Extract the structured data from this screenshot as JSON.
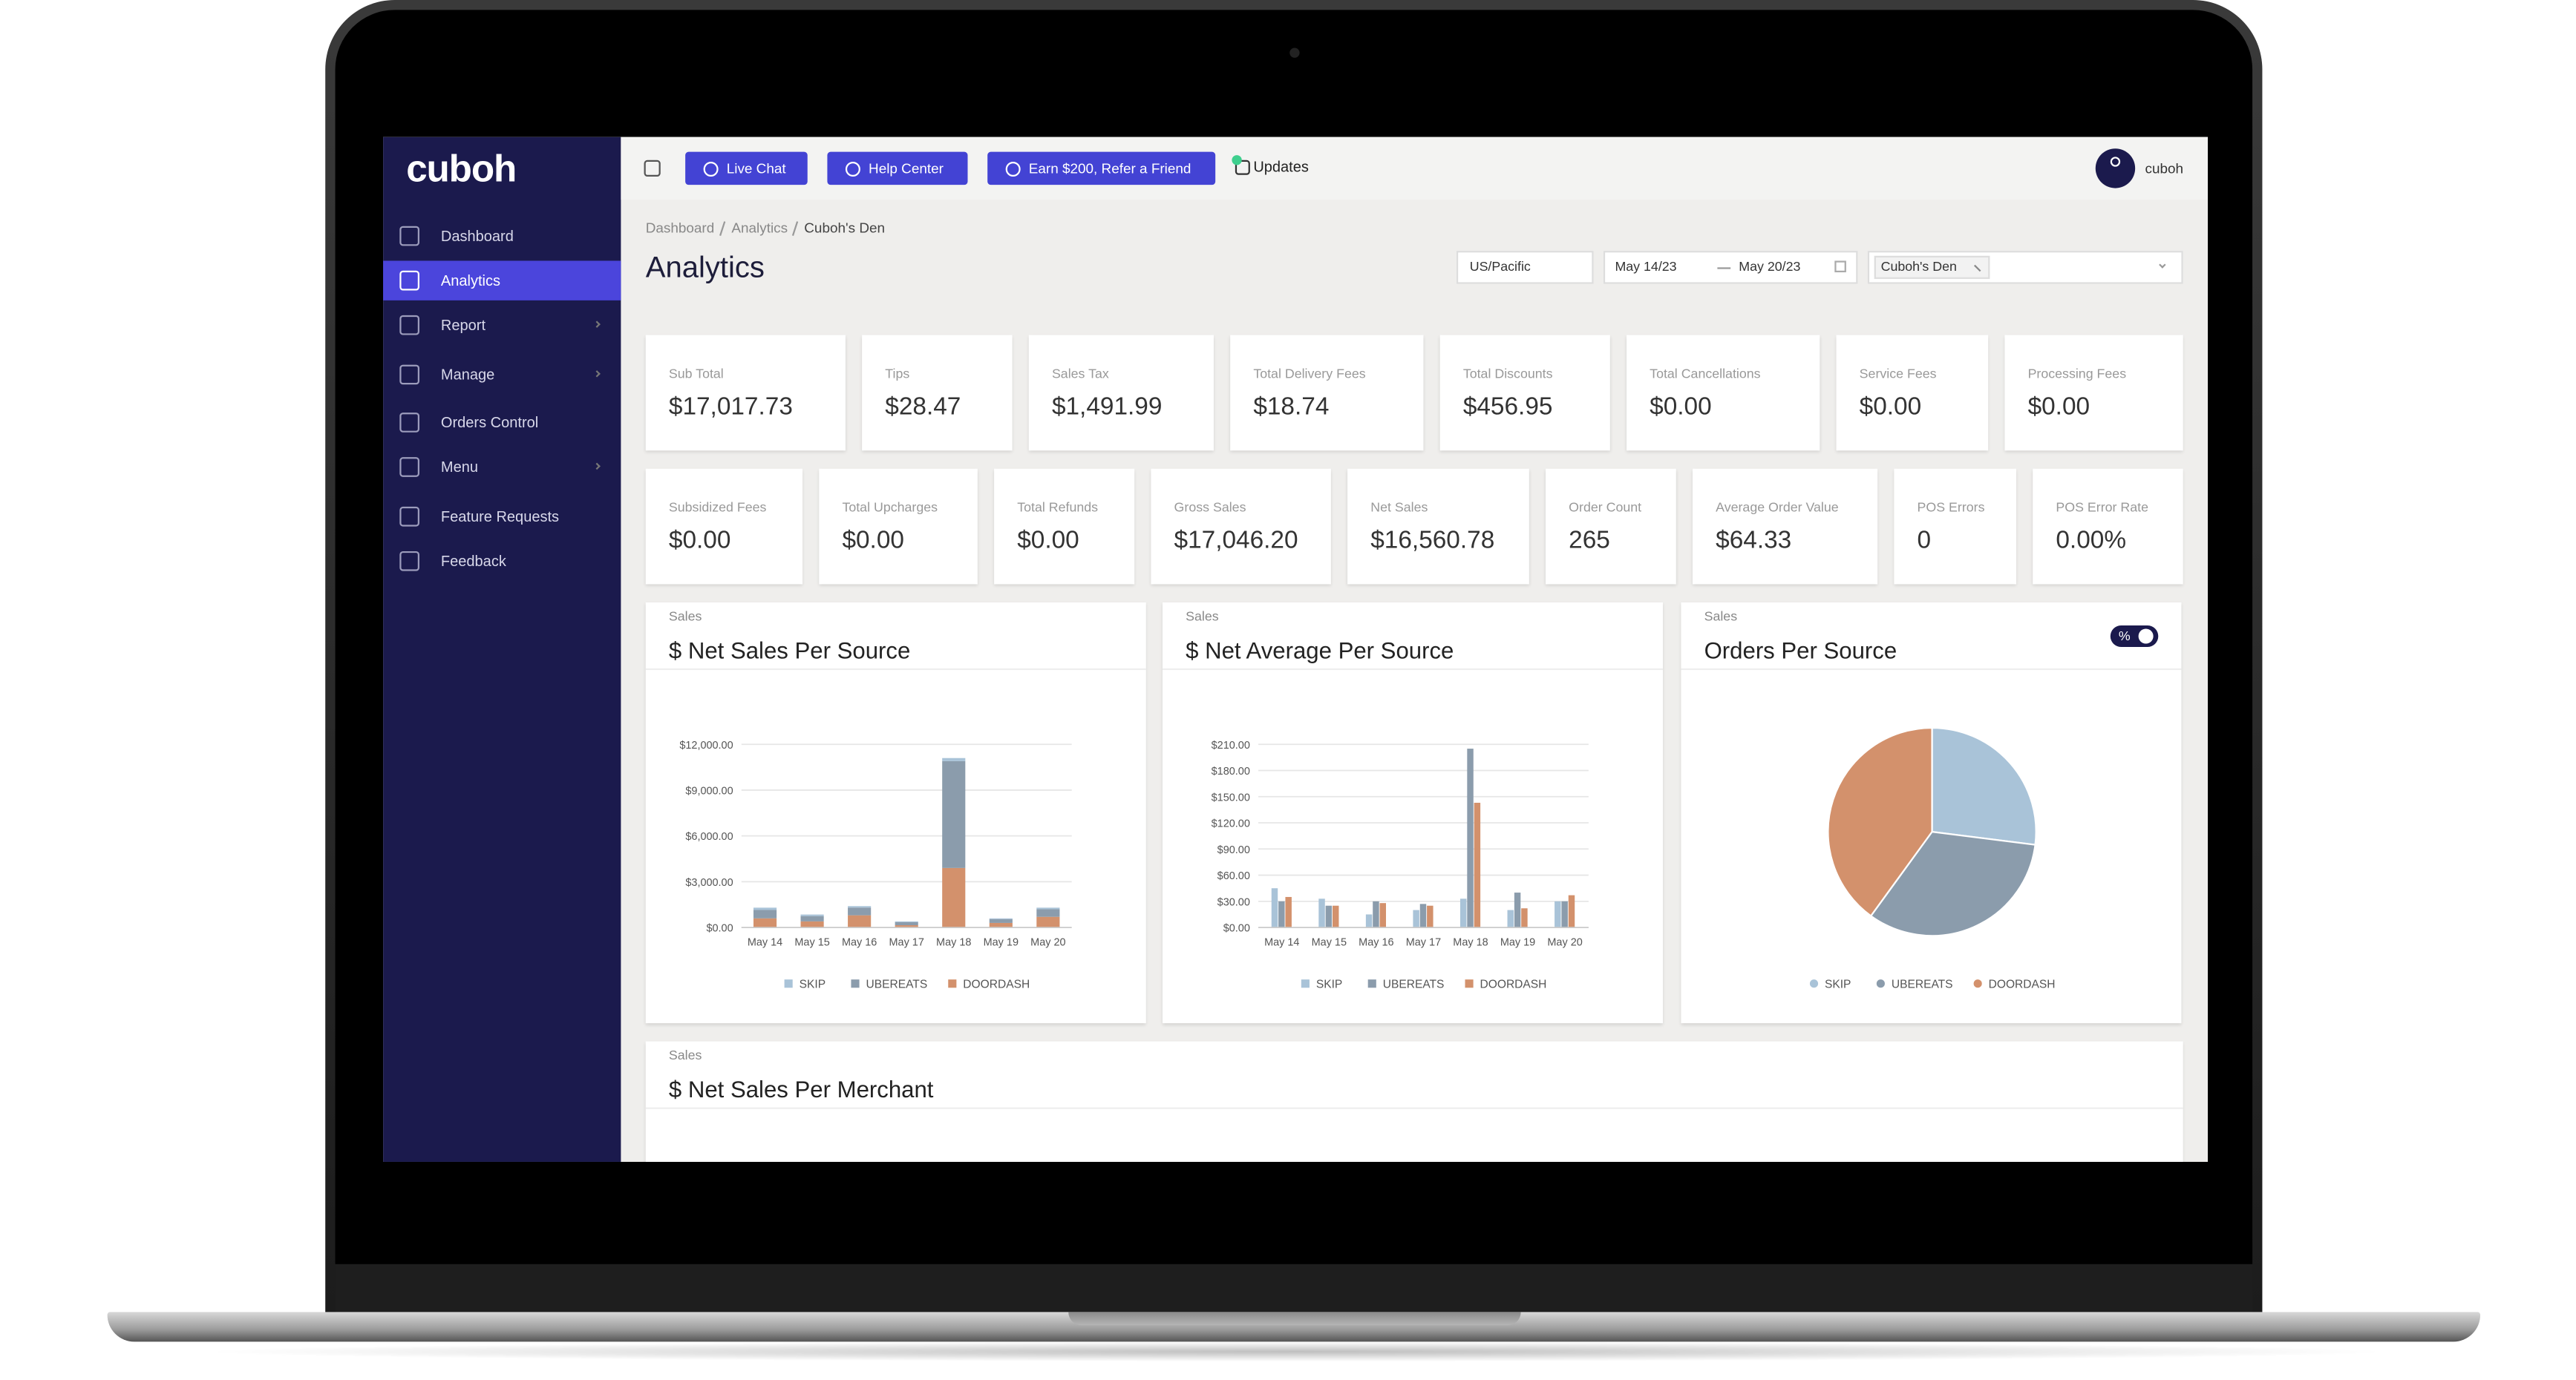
{
  "sidebar": {
    "logo": "cuboh",
    "nav": [
      "Dashboard",
      "Analytics",
      "Report",
      "Manage",
      "Orders Control",
      "Menu",
      "Feature Requests",
      "Feedback"
    ],
    "active": 1
  },
  "topbar": {
    "buttons": [
      "Live Chat",
      "Help Center",
      "Earn $200, Refer a Friend"
    ],
    "updates": "Updates",
    "user": "cuboh"
  },
  "breadcrumb": [
    "Dashboard",
    "Analytics",
    "Cuboh's Den"
  ],
  "page_title": "Analytics",
  "filters": {
    "timezone": "US/Pacific",
    "date_from": "May 14/23",
    "date_to": "May 20/23",
    "store": "Cuboh's Den"
  },
  "metrics": [
    [
      {
        "label": "Sub Total",
        "value": "$17,017.73"
      },
      {
        "label": "Tips",
        "value": "$28.47"
      },
      {
        "label": "Sales Tax",
        "value": "$1,491.99"
      },
      {
        "label": "Total Delivery Fees",
        "value": "$18.74"
      },
      {
        "label": "Total Discounts",
        "value": "$456.95"
      },
      {
        "label": "Total Cancellations",
        "value": "$0.00"
      },
      {
        "label": "Service Fees",
        "value": "$0.00"
      },
      {
        "label": "Processing Fees",
        "value": "$0.00"
      }
    ],
    [
      {
        "label": "Subsidized Fees",
        "value": "$0.00"
      },
      {
        "label": "Total Upcharges",
        "value": "$0.00"
      },
      {
        "label": "Total Refunds",
        "value": "$0.00"
      },
      {
        "label": "Gross Sales",
        "value": "$17,046.20"
      },
      {
        "label": "Net Sales",
        "value": "$16,560.78"
      },
      {
        "label": "Order Count",
        "value": "265"
      },
      {
        "label": "Average Order Value",
        "value": "$64.33"
      },
      {
        "label": "POS Errors",
        "value": "0"
      },
      {
        "label": "POS Error Rate",
        "value": "0.00%"
      }
    ]
  ],
  "chart_data": [
    {
      "type": "bar",
      "stacked": true,
      "kicker": "Sales",
      "title": "$ Net Sales Per Source",
      "categories": [
        "May 14",
        "May 15",
        "May 16",
        "May 17",
        "May 18",
        "May 19",
        "May 20"
      ],
      "series": [
        {
          "name": "SKIP",
          "color": "#a9c3d8",
          "values": [
            150,
            100,
            100,
            50,
            200,
            50,
            100
          ]
        },
        {
          "name": "UBEREATS",
          "color": "#8b9cac",
          "values": [
            550,
            350,
            500,
            200,
            7000,
            250,
            500
          ]
        },
        {
          "name": "DOORDASH",
          "color": "#d3916c",
          "values": [
            600,
            400,
            800,
            150,
            3900,
            300,
            700
          ]
        }
      ],
      "ylim": [
        0,
        12000
      ],
      "yticks": [
        {
          "value": 0,
          "label": "$0.00"
        },
        {
          "value": 3000,
          "label": "$3,000.00"
        },
        {
          "value": 6000,
          "label": "$6,000.00"
        },
        {
          "value": 9000,
          "label": "$9,000.00"
        },
        {
          "value": 12000,
          "label": "$12,000.00"
        }
      ],
      "grid": true
    },
    {
      "type": "bar",
      "stacked": false,
      "kicker": "Sales",
      "title": "$ Net Average Per Source",
      "categories": [
        "May 14",
        "May 15",
        "May 16",
        "May 17",
        "May 18",
        "May 19",
        "May 20"
      ],
      "series": [
        {
          "name": "SKIP",
          "color": "#a9c3d8",
          "values": [
            45,
            33,
            15,
            20,
            33,
            20,
            30
          ]
        },
        {
          "name": "UBEREATS",
          "color": "#8b9cac",
          "values": [
            30,
            25,
            30,
            27,
            205,
            40,
            30
          ]
        },
        {
          "name": "DOORDASH",
          "color": "#d3916c",
          "values": [
            35,
            25,
            28,
            25,
            143,
            22,
            37
          ]
        }
      ],
      "ylim": [
        0,
        210
      ],
      "yticks": [
        {
          "value": 0,
          "label": "$0.00"
        },
        {
          "value": 30,
          "label": "$30.00"
        },
        {
          "value": 60,
          "label": "$60.00"
        },
        {
          "value": 90,
          "label": "$90.00"
        },
        {
          "value": 120,
          "label": "$120.00"
        },
        {
          "value": 150,
          "label": "$150.00"
        },
        {
          "value": 180,
          "label": "$180.00"
        },
        {
          "value": 210,
          "label": "$210.00"
        }
      ],
      "grid": true
    },
    {
      "type": "pie",
      "kicker": "Sales",
      "title": "Orders Per Source",
      "toggle_label": "%",
      "categories": [
        "SKIP",
        "UBEREATS",
        "DOORDASH"
      ],
      "values": [
        27,
        33,
        40
      ],
      "colors": [
        "#a9c3d8",
        "#8b9cac",
        "#d3916c"
      ]
    }
  ],
  "merchant_panel": {
    "kicker": "Sales",
    "title": "$ Net Sales Per Merchant"
  }
}
